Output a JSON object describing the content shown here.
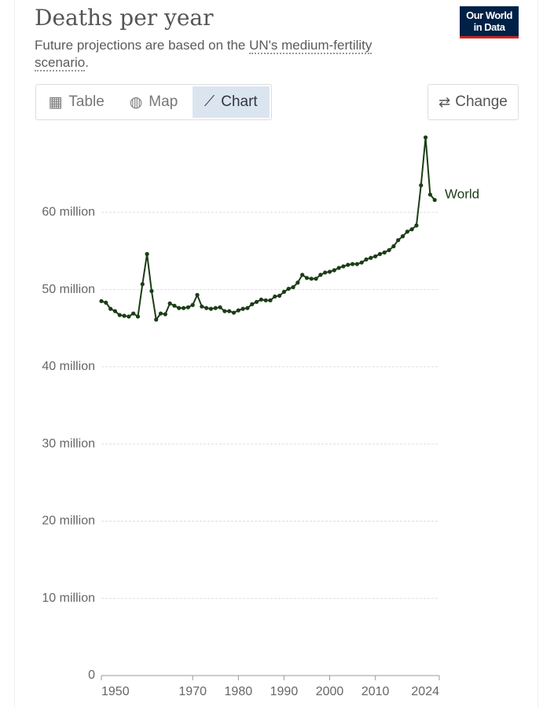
{
  "title": "Deaths per year",
  "subtitle": [
    "Future projections are based on the ",
    "UN's medium-fertility scenario",
    "."
  ],
  "logo": [
    "Our World",
    "in Data"
  ],
  "tabs": [
    "Table",
    "Map",
    "Chart"
  ],
  "active_tab": 2,
  "change_button": "Change",
  "chart_data": {
    "type": "line",
    "x": [
      1950,
      1951,
      1952,
      1953,
      1954,
      1955,
      1956,
      1957,
      1958,
      1959,
      1960,
      1961,
      1962,
      1963,
      1964,
      1965,
      1966,
      1967,
      1968,
      1969,
      1970,
      1971,
      1972,
      1973,
      1974,
      1975,
      1976,
      1977,
      1978,
      1979,
      1980,
      1981,
      1982,
      1983,
      1984,
      1985,
      1986,
      1987,
      1988,
      1989,
      1990,
      1991,
      1992,
      1993,
      1994,
      1995,
      1996,
      1997,
      1998,
      1999,
      2000,
      2001,
      2002,
      2003,
      2004,
      2005,
      2006,
      2007,
      2008,
      2009,
      2010,
      2011,
      2012,
      2013,
      2014,
      2015,
      2016,
      2017,
      2018,
      2019,
      2020,
      2021,
      2022,
      2023
    ],
    "series": [
      {
        "name": "World",
        "color": "#1b3d16",
        "values": [
          48500000,
          48300000,
          47500000,
          47200000,
          46700000,
          46600000,
          46500000,
          46900000,
          46500000,
          50700000,
          54600000,
          49800000,
          46100000,
          46900000,
          46800000,
          48200000,
          47900000,
          47600000,
          47600000,
          47700000,
          48000000,
          49300000,
          47800000,
          47600000,
          47500000,
          47600000,
          47700000,
          47200000,
          47200000,
          47000000,
          47300000,
          47500000,
          47600000,
          48100000,
          48400000,
          48700000,
          48600000,
          48600000,
          49100000,
          49200000,
          49700000,
          50100000,
          50300000,
          50900000,
          51900000,
          51500000,
          51400000,
          51400000,
          51900000,
          52200000,
          52300000,
          52500000,
          52800000,
          53000000,
          53200000,
          53300000,
          53300000,
          53500000,
          53900000,
          54100000,
          54300000,
          54600000,
          54800000,
          55100000,
          55600000,
          56400000,
          56900000,
          57500000,
          57800000,
          58300000,
          63500000,
          69700000,
          62300000,
          61600000
        ]
      }
    ],
    "xlim": [
      1950,
      2024
    ],
    "xticks": [
      1950,
      1970,
      1980,
      1990,
      2000,
      2010,
      2024
    ],
    "ylim": [
      0,
      70000000
    ],
    "yticks": [
      0,
      {
        "value": 10000000,
        "label": "10 million"
      },
      {
        "value": 20000000,
        "label": "20 million"
      },
      {
        "value": 30000000,
        "label": "30 million"
      },
      {
        "value": 40000000,
        "label": "40 million"
      },
      {
        "value": 50000000,
        "label": "50 million"
      },
      {
        "value": 60000000,
        "label": "60 million"
      }
    ],
    "grid": true
  }
}
